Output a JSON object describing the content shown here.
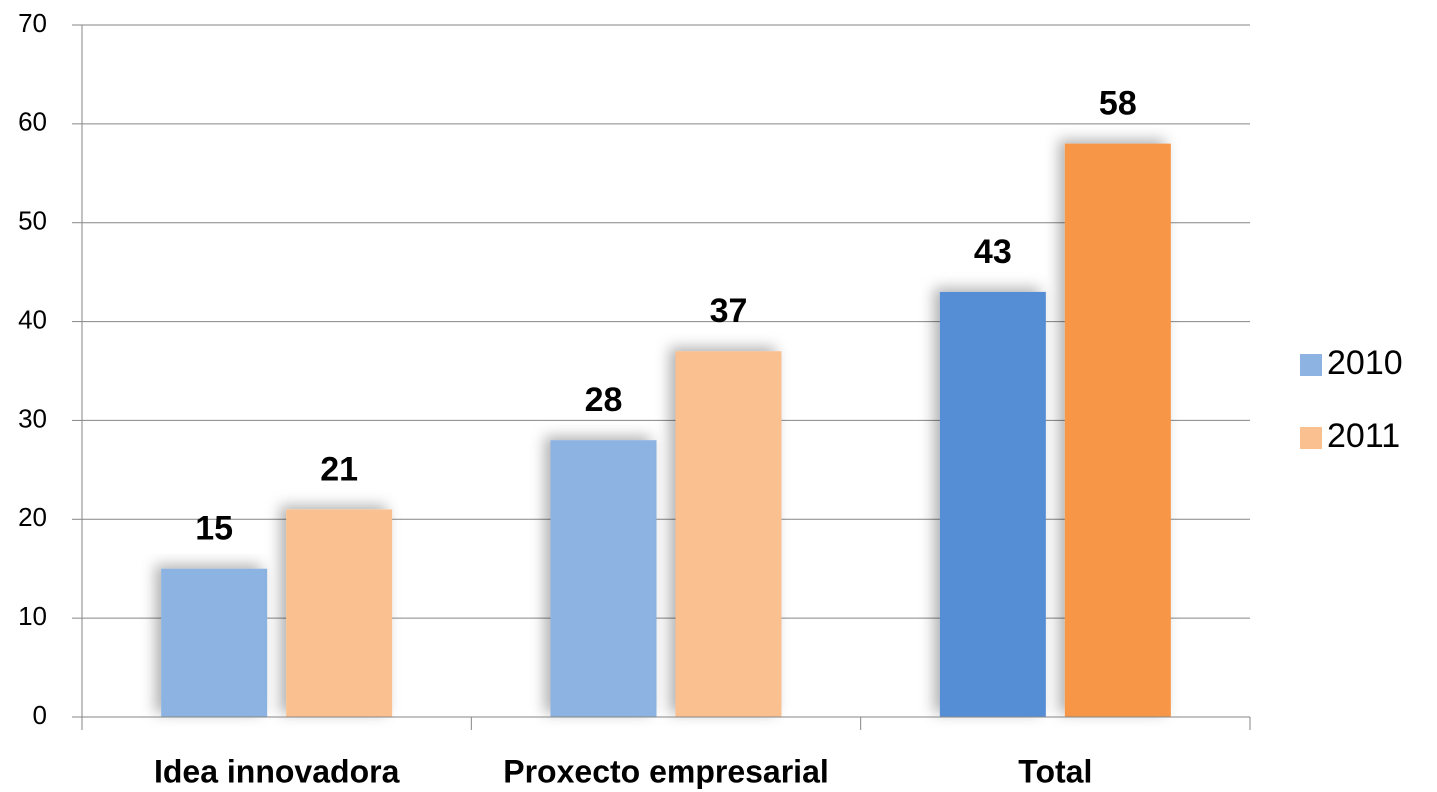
{
  "chart_data": {
    "type": "bar",
    "categories": [
      "Idea innovadora",
      "Proxecto empresarial",
      "Total"
    ],
    "series": [
      {
        "name": "2010",
        "color": "#8db3e2",
        "colors": [
          "#8db3e2",
          "#8db3e2",
          "#558ed5"
        ],
        "values": [
          15,
          28,
          43
        ]
      },
      {
        "name": "2011",
        "color": "#fac090",
        "colors": [
          "#fac090",
          "#fac090",
          "#f79646"
        ],
        "values": [
          21,
          37,
          58
        ]
      }
    ],
    "ylim": [
      0,
      70
    ],
    "yticks": [
      0,
      10,
      20,
      30,
      40,
      50,
      60,
      70
    ],
    "grid": true,
    "legend": "right"
  }
}
